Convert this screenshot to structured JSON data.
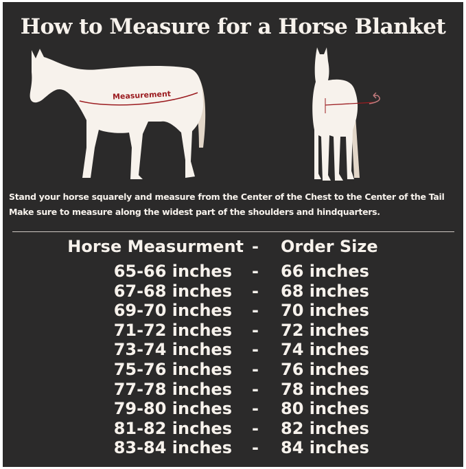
{
  "title": "How to Measure for a Horse Blanket",
  "diagram": {
    "measurement_label": "Measurement",
    "colors": {
      "background": "#2b2a2a",
      "horse": "#f7f2ec",
      "tail": "#e2d6c8",
      "measure_line": "#9b1c20"
    }
  },
  "instructions": [
    "Stand your horse squarely and measure from the Center of the Chest to the Center of the Tail",
    "Make sure to measure along the widest part of the shoulders and hindquarters."
  ],
  "table": {
    "headers": {
      "measurement": "Horse Measurment",
      "separator": "-",
      "size": "Order Size"
    },
    "rows": [
      {
        "measurement": "65-66 inches",
        "separator": "-",
        "size": "66 inches"
      },
      {
        "measurement": "67-68 inches",
        "separator": "-",
        "size": "68 inches"
      },
      {
        "measurement": "69-70 inches",
        "separator": "-",
        "size": "70 inches"
      },
      {
        "measurement": "71-72 inches",
        "separator": "-",
        "size": "72 inches"
      },
      {
        "measurement": "73-74 inches",
        "separator": "-",
        "size": "74 inches"
      },
      {
        "measurement": "75-76 inches",
        "separator": "-",
        "size": "76 inches"
      },
      {
        "measurement": "77-78 inches",
        "separator": "-",
        "size": "78 inches"
      },
      {
        "measurement": "79-80 inches",
        "separator": "-",
        "size": "80 inches"
      },
      {
        "measurement": "81-82 inches",
        "separator": "-",
        "size": "82 inches"
      },
      {
        "measurement": "83-84 inches",
        "separator": "-",
        "size": "84 inches"
      }
    ]
  }
}
